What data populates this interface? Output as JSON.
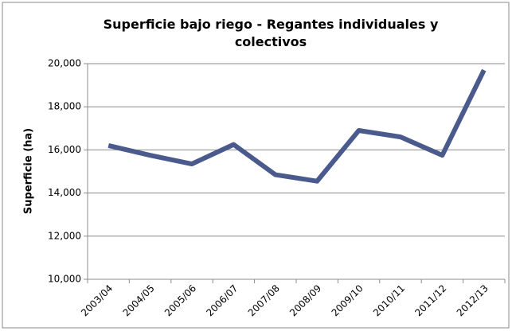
{
  "chart_data": {
    "type": "line",
    "title": "Superficie bajo riego - Regantes individuales y colectivos",
    "y_label": "Superficie (ha)",
    "categories": [
      "2003/04",
      "2004/05",
      "2005/06",
      "2006/07",
      "2007/08",
      "2008/09",
      "2009/10",
      "2010/11",
      "2011/12",
      "2012/13"
    ],
    "series": [
      {
        "name": "Superficie",
        "color": "#4a5a8c",
        "values": [
          16200,
          15750,
          15350,
          16250,
          14850,
          14550,
          16900,
          16600,
          15750,
          19700
        ]
      }
    ],
    "ylim": [
      10000,
      20000
    ],
    "yticks": [
      {
        "value": 10000,
        "label": "10,000"
      },
      {
        "value": 12000,
        "label": "12,000"
      },
      {
        "value": 14000,
        "label": "14,000"
      },
      {
        "value": 16000,
        "label": "16,000"
      },
      {
        "value": 18000,
        "label": "18,000"
      },
      {
        "value": 20000,
        "label": "20,000"
      }
    ],
    "grid": true
  }
}
